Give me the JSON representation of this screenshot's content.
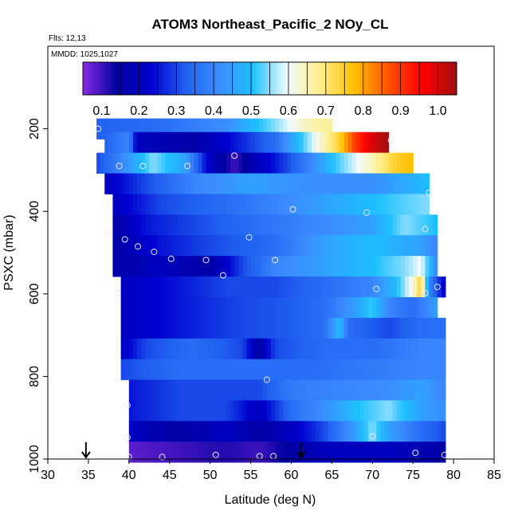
{
  "chart_data": {
    "type": "heatmap",
    "title": "ATOM3 Northeast_Pacific_2 NOy_CL",
    "annotations": {
      "flights": "Flts: 12,13",
      "dates": "MMDD: 1025,1027"
    },
    "xlabel": "Latitude (deg N)",
    "ylabel": "PSXC (mbar)",
    "xlim": [
      30,
      85
    ],
    "ylim": [
      1000,
      0
    ],
    "x_ticks": [
      "30",
      "35",
      "40",
      "45",
      "50",
      "55",
      "60",
      "65",
      "70",
      "75",
      "80",
      "85"
    ],
    "y_ticks": [
      "200",
      "400",
      "600",
      "800",
      "1000"
    ],
    "colorbar": {
      "range": [
        0.05,
        1.05
      ],
      "tick_labels": [
        "0.1",
        "0.2",
        "0.3",
        "0.4",
        "0.5",
        "0.6",
        "0.7",
        "0.8",
        "0.9",
        "1.0"
      ],
      "colors": [
        "#8a2be2",
        "#0000a0",
        "#0000d0",
        "#2060f0",
        "#3c8cff",
        "#1ec0ff",
        "#f0faff",
        "#ffee88",
        "#ffc000",
        "#ff5000",
        "#ff0000",
        "#a01010"
      ]
    },
    "bands": [
      {
        "p": 200,
        "lat_min": 36,
        "lat_max": 65,
        "stops": [
          [
            36,
            0.33
          ],
          [
            44,
            0.35
          ],
          [
            52,
            0.42
          ],
          [
            58,
            0.55
          ],
          [
            62,
            0.65
          ],
          [
            65,
            0.68
          ]
        ]
      },
      {
        "p": 233,
        "lat_min": 37,
        "lat_max": 72,
        "stops": [
          [
            37,
            0.33
          ],
          [
            40,
            0.4
          ],
          [
            41,
            0.2
          ],
          [
            48,
            0.15
          ],
          [
            53,
            0.25
          ],
          [
            58,
            0.35
          ],
          [
            62,
            0.55
          ],
          [
            66,
            0.75
          ],
          [
            68,
            0.9
          ],
          [
            70,
            1.0
          ],
          [
            72,
            1.05
          ]
        ]
      },
      {
        "p": 283,
        "lat_min": 36,
        "lat_max": 75,
        "stops": [
          [
            36,
            0.3
          ],
          [
            39,
            0.4
          ],
          [
            43,
            0.55
          ],
          [
            47,
            0.45
          ],
          [
            50,
            0.2
          ],
          [
            53,
            0.1
          ],
          [
            56,
            0.2
          ],
          [
            58,
            0.25
          ],
          [
            61,
            0.35
          ],
          [
            65,
            0.5
          ],
          [
            70,
            0.65
          ],
          [
            73,
            0.75
          ],
          [
            75,
            0.78
          ]
        ]
      },
      {
        "p": 333,
        "lat_min": 37,
        "lat_max": 77,
        "stops": [
          [
            37,
            0.2
          ],
          [
            42,
            0.3
          ],
          [
            48,
            0.4
          ],
          [
            55,
            0.45
          ],
          [
            62,
            0.42
          ],
          [
            70,
            0.42
          ],
          [
            77,
            0.5
          ]
        ]
      },
      {
        "p": 383,
        "lat_min": 38,
        "lat_max": 77,
        "stops": [
          [
            38,
            0.2
          ],
          [
            44,
            0.3
          ],
          [
            52,
            0.35
          ],
          [
            58,
            0.4
          ],
          [
            64,
            0.45
          ],
          [
            70,
            0.5
          ],
          [
            77,
            0.55
          ]
        ]
      },
      {
        "p": 433,
        "lat_min": 38,
        "lat_max": 78,
        "stops": [
          [
            38,
            0.15
          ],
          [
            42,
            0.25
          ],
          [
            48,
            0.3
          ],
          [
            55,
            0.35
          ],
          [
            62,
            0.4
          ],
          [
            70,
            0.45
          ],
          [
            74,
            0.55
          ],
          [
            78,
            0.5
          ]
        ]
      },
      {
        "p": 483,
        "lat_min": 38,
        "lat_max": 78,
        "stops": [
          [
            38,
            0.15
          ],
          [
            44,
            0.25
          ],
          [
            50,
            0.3
          ],
          [
            58,
            0.35
          ],
          [
            64,
            0.45
          ],
          [
            70,
            0.5
          ],
          [
            76,
            0.45
          ],
          [
            78,
            0.4
          ]
        ]
      },
      {
        "p": 533,
        "lat_min": 38,
        "lat_max": 78,
        "stops": [
          [
            38,
            0.15
          ],
          [
            44,
            0.2
          ],
          [
            50,
            0.15
          ],
          [
            54,
            0.3
          ],
          [
            58,
            0.4
          ],
          [
            64,
            0.45
          ],
          [
            70,
            0.5
          ],
          [
            74,
            0.55
          ],
          [
            76,
            0.6
          ],
          [
            78,
            0.4
          ]
        ]
      },
      {
        "p": 583,
        "lat_min": 39,
        "lat_max": 79,
        "stops": [
          [
            39,
            0.2
          ],
          [
            46,
            0.25
          ],
          [
            52,
            0.3
          ],
          [
            58,
            0.3
          ],
          [
            64,
            0.35
          ],
          [
            70,
            0.4
          ],
          [
            73,
            0.5
          ],
          [
            75,
            0.62
          ],
          [
            76,
            0.75
          ],
          [
            77,
            0.4
          ],
          [
            79,
            0.2
          ]
        ]
      },
      {
        "p": 633,
        "lat_min": 39,
        "lat_max": 78,
        "stops": [
          [
            39,
            0.2
          ],
          [
            46,
            0.25
          ],
          [
            54,
            0.3
          ],
          [
            60,
            0.32
          ],
          [
            64,
            0.35
          ],
          [
            68,
            0.45
          ],
          [
            70,
            0.52
          ],
          [
            72,
            0.4
          ],
          [
            75,
            0.35
          ],
          [
            78,
            0.45
          ]
        ]
      },
      {
        "p": 683,
        "lat_min": 39,
        "lat_max": 79,
        "stops": [
          [
            39,
            0.2
          ],
          [
            46,
            0.25
          ],
          [
            54,
            0.3
          ],
          [
            60,
            0.32
          ],
          [
            64,
            0.35
          ],
          [
            66,
            0.5
          ],
          [
            67,
            0.35
          ],
          [
            72,
            0.3
          ],
          [
            76,
            0.35
          ],
          [
            79,
            0.35
          ]
        ]
      },
      {
        "p": 733,
        "lat_min": 39,
        "lat_max": 79,
        "stops": [
          [
            39,
            0.2
          ],
          [
            42,
            0.3
          ],
          [
            48,
            0.35
          ],
          [
            54,
            0.3
          ],
          [
            56,
            0.15
          ],
          [
            58,
            0.3
          ],
          [
            64,
            0.35
          ],
          [
            70,
            0.35
          ],
          [
            76,
            0.4
          ],
          [
            79,
            0.4
          ]
        ]
      },
      {
        "p": 783,
        "lat_min": 39,
        "lat_max": 79,
        "stops": [
          [
            39,
            0.3
          ],
          [
            46,
            0.35
          ],
          [
            54,
            0.35
          ],
          [
            62,
            0.35
          ],
          [
            70,
            0.38
          ],
          [
            76,
            0.4
          ],
          [
            79,
            0.4
          ]
        ]
      },
      {
        "p": 833,
        "lat_min": 40,
        "lat_max": 79,
        "stops": [
          [
            40,
            0.25
          ],
          [
            46,
            0.3
          ],
          [
            52,
            0.3
          ],
          [
            56,
            0.3
          ],
          [
            60,
            0.38
          ],
          [
            66,
            0.4
          ],
          [
            72,
            0.42
          ],
          [
            76,
            0.45
          ],
          [
            79,
            0.4
          ]
        ]
      },
      {
        "p": 883,
        "lat_min": 40,
        "lat_max": 79,
        "stops": [
          [
            40,
            0.25
          ],
          [
            46,
            0.3
          ],
          [
            52,
            0.3
          ],
          [
            56,
            0.2
          ],
          [
            60,
            0.35
          ],
          [
            64,
            0.42
          ],
          [
            68,
            0.5
          ],
          [
            72,
            0.55
          ],
          [
            76,
            0.45
          ],
          [
            79,
            0.42
          ]
        ]
      },
      {
        "p": 933,
        "lat_min": 40,
        "lat_max": 79,
        "stops": [
          [
            40,
            0.2
          ],
          [
            46,
            0.15
          ],
          [
            52,
            0.2
          ],
          [
            56,
            0.15
          ],
          [
            60,
            0.2
          ],
          [
            64,
            0.3
          ],
          [
            68,
            0.45
          ],
          [
            70,
            0.55
          ],
          [
            72,
            0.45
          ],
          [
            76,
            0.35
          ],
          [
            79,
            0.3
          ]
        ]
      },
      {
        "p": 983,
        "lat_min": 40,
        "lat_max": 79,
        "stops": [
          [
            40,
            0.08
          ],
          [
            46,
            0.1
          ],
          [
            52,
            0.12
          ],
          [
            56,
            0.1
          ],
          [
            60,
            0.15
          ],
          [
            64,
            0.2
          ],
          [
            68,
            0.2
          ],
          [
            72,
            0.2
          ],
          [
            76,
            0.18
          ],
          [
            79,
            0.15
          ]
        ]
      }
    ],
    "sample_points": [
      [
        36.2,
        200
      ],
      [
        65.0,
        185
      ],
      [
        72.3,
        228
      ],
      [
        53.0,
        265
      ],
      [
        38.8,
        290
      ],
      [
        41.7,
        290
      ],
      [
        47.2,
        290
      ],
      [
        77.0,
        355
      ],
      [
        60.2,
        395
      ],
      [
        69.3,
        403
      ],
      [
        76.5,
        443
      ],
      [
        37.4,
        453
      ],
      [
        39.5,
        468
      ],
      [
        41.1,
        485
      ],
      [
        43.1,
        498
      ],
      [
        45.2,
        515
      ],
      [
        49.5,
        518
      ],
      [
        58.0,
        518
      ],
      [
        54.8,
        463
      ],
      [
        51.6,
        555
      ],
      [
        38.6,
        598
      ],
      [
        70.5,
        588
      ],
      [
        76.5,
        598
      ],
      [
        78.0,
        583
      ],
      [
        57.0,
        808
      ],
      [
        39.8,
        870
      ],
      [
        39.8,
        948
      ],
      [
        70.0,
        945
      ],
      [
        40.0,
        995
      ],
      [
        44.1,
        995
      ],
      [
        50.7,
        990
      ],
      [
        56.1,
        993
      ],
      [
        57.8,
        993
      ],
      [
        75.3,
        985
      ],
      [
        78.9,
        990
      ]
    ],
    "arrows_lat": [
      34.7,
      61.2
    ]
  }
}
